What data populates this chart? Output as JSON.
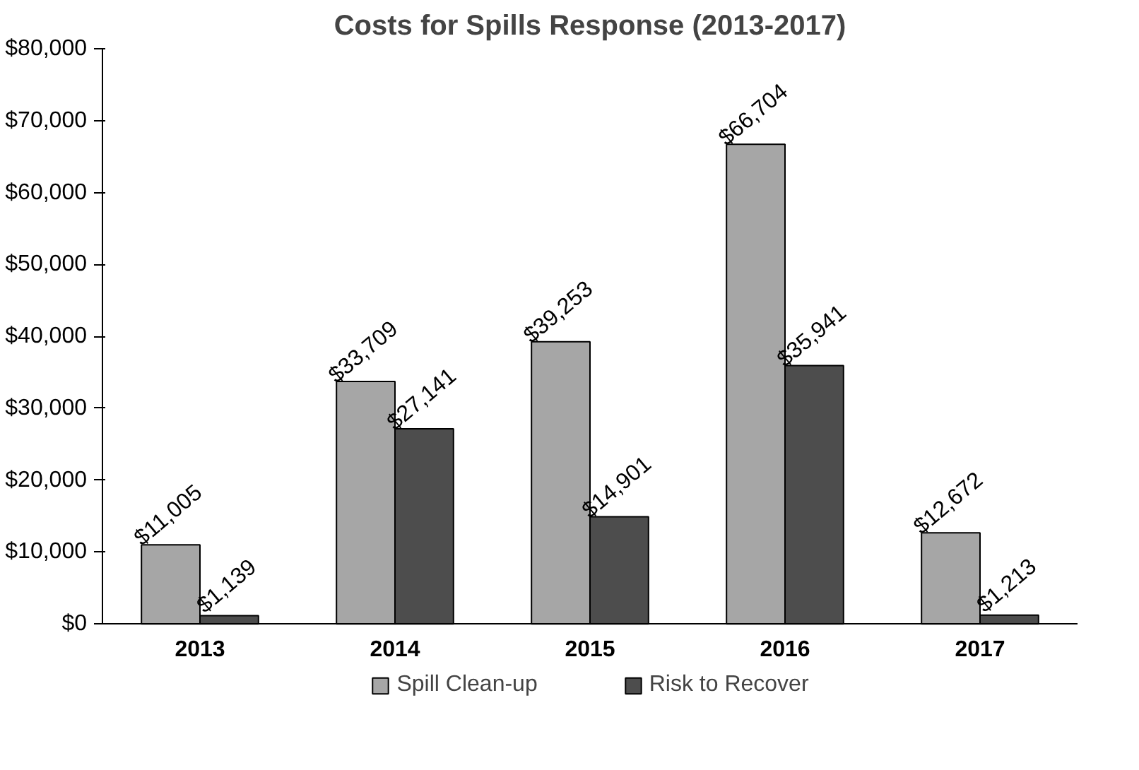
{
  "chart_data": {
    "type": "bar",
    "title": "Costs for Spills Response (2013-2017)",
    "categories": [
      "2013",
      "2014",
      "2015",
      "2016",
      "2017"
    ],
    "series": [
      {
        "name": "Spill Clean-up",
        "color": "#a6a6a6",
        "values": [
          11005,
          33709,
          39253,
          66704,
          12672
        ],
        "value_labels": [
          "$11,005",
          "$33,709",
          "$39,253",
          "$66,704",
          "$12,672"
        ]
      },
      {
        "name": "Risk to Recover",
        "color": "#4d4d4d",
        "values": [
          1139,
          27141,
          14901,
          35941,
          1213
        ],
        "value_labels": [
          "$1,139",
          "$27,141",
          "$14,901",
          "$35,941",
          "$1,213"
        ]
      }
    ],
    "ylim": [
      0,
      80000
    ],
    "yticks": [
      {
        "value": 0,
        "label": "$0"
      },
      {
        "value": 10000,
        "label": "$10,000"
      },
      {
        "value": 20000,
        "label": "$20,000"
      },
      {
        "value": 30000,
        "label": "$30,000"
      },
      {
        "value": 40000,
        "label": "$40,000"
      },
      {
        "value": 50000,
        "label": "$50,000"
      },
      {
        "value": 60000,
        "label": "$60,000"
      },
      {
        "value": 70000,
        "label": "$70,000"
      },
      {
        "value": 80000,
        "label": "$80,000"
      }
    ],
    "grid": false,
    "legend": "bottom"
  }
}
